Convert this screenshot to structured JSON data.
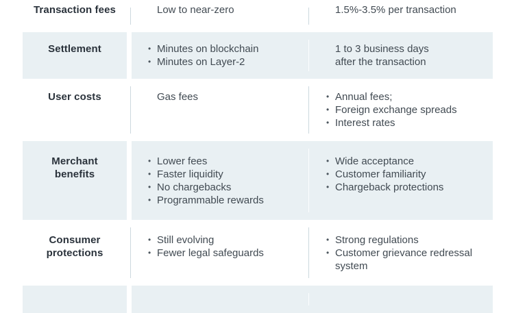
{
  "table": {
    "bullet_glyph": "•",
    "colors": {
      "row_shade": "#e9f0f3",
      "label_text": "#2a323b",
      "body_text": "#414a52",
      "bullet": "#4d575f",
      "divider": "#ccd8de"
    },
    "rows": [
      {
        "shaded": false,
        "label_lines": [
          "Transaction fees"
        ],
        "col1": [
          {
            "bullet": false,
            "lines": [
              "Low to near-zero"
            ]
          }
        ],
        "col2": [
          {
            "bullet": false,
            "lines": [
              "1.5%-3.5% per transaction"
            ]
          }
        ]
      },
      {
        "shaded": true,
        "label_lines": [
          "Settlement"
        ],
        "col1": [
          {
            "bullet": true,
            "lines": [
              "Minutes on blockchain"
            ]
          },
          {
            "bullet": true,
            "lines": [
              "Minutes on Layer-2"
            ]
          }
        ],
        "col2": [
          {
            "bullet": false,
            "lines": [
              "1 to 3 business days",
              "after the transaction"
            ]
          }
        ]
      },
      {
        "shaded": false,
        "label_lines": [
          "User costs"
        ],
        "col1": [
          {
            "bullet": false,
            "lines": [
              "Gas fees"
            ]
          }
        ],
        "col2": [
          {
            "bullet": true,
            "lines": [
              "Annual fees;"
            ]
          },
          {
            "bullet": true,
            "lines": [
              "Foreign exchange spreads"
            ]
          },
          {
            "bullet": true,
            "lines": [
              "Interest rates"
            ]
          }
        ]
      },
      {
        "shaded": true,
        "label_lines": [
          "Merchant",
          "benefits"
        ],
        "col1": [
          {
            "bullet": true,
            "lines": [
              "Lower fees"
            ]
          },
          {
            "bullet": true,
            "lines": [
              "Faster liquidity"
            ]
          },
          {
            "bullet": true,
            "lines": [
              "No chargebacks"
            ]
          },
          {
            "bullet": true,
            "lines": [
              "Programmable rewards"
            ]
          }
        ],
        "col2": [
          {
            "bullet": true,
            "lines": [
              "Wide acceptance"
            ]
          },
          {
            "bullet": true,
            "lines": [
              "Customer familiarity"
            ]
          },
          {
            "bullet": true,
            "lines": [
              "Chargeback protections"
            ]
          }
        ]
      },
      {
        "shaded": false,
        "label_lines": [
          "Consumer",
          "protections"
        ],
        "col1": [
          {
            "bullet": true,
            "lines": [
              "Still evolving"
            ]
          },
          {
            "bullet": true,
            "lines": [
              "Fewer legal safeguards"
            ]
          }
        ],
        "col2": [
          {
            "bullet": true,
            "lines": [
              "Strong regulations"
            ]
          },
          {
            "bullet": true,
            "lines": [
              "Customer grievance redressal",
              "system"
            ]
          }
        ]
      },
      {
        "shaded": true,
        "label_lines": [],
        "col1": [],
        "col2": []
      }
    ]
  }
}
